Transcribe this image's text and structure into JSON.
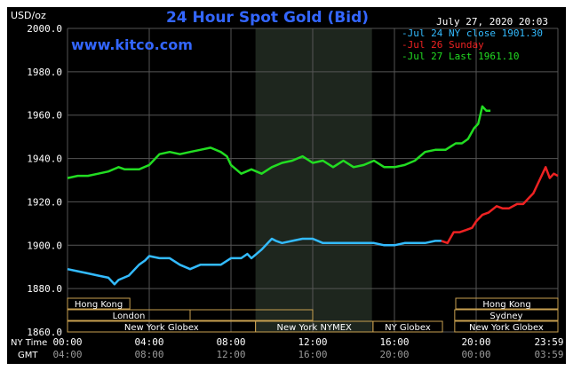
{
  "chart_data": {
    "type": "line",
    "title": "24 Hour Spot Gold (Bid)",
    "date_text": "July 27, 2020 20:03",
    "site": "www.kitco.com",
    "y_unit": "USD/oz",
    "ylim": [
      1860,
      2000
    ],
    "y_ticks": [
      "2000.0",
      "1980.0",
      "1960.0",
      "1940.0",
      "1920.0",
      "1900.0",
      "1880.0",
      "1860.0"
    ],
    "x_ticks_ny": [
      "00:00",
      "04:00",
      "08:00",
      "12:00",
      "16:00",
      "20:00",
      "23:59"
    ],
    "x_ticks_gmt": [
      "04:00",
      "08:00",
      "12:00",
      "16:00",
      "20:00",
      "00:00",
      "03:59"
    ],
    "x_label_ny": "NY Time",
    "x_label_gmt": "GMT",
    "shaded_region": [
      9.2,
      14.9
    ],
    "legend": [
      {
        "text": "Jul 24 NY close 1901.30",
        "color": "#33bbff"
      },
      {
        "text": "Jul 26 Sunday",
        "color": "#ee2222"
      },
      {
        "text": "Jul 27 Last 1961.10",
        "color": "#22dd22"
      }
    ],
    "series": [
      {
        "name": "Jul 24 NY close 1901.30",
        "color": "#33bbff",
        "x": [
          0,
          0.5,
          1,
          1.5,
          2,
          2.3,
          2.5,
          3,
          3.5,
          3.8,
          4,
          4.5,
          5,
          5.5,
          6,
          6.5,
          7,
          7.5,
          8,
          8.5,
          8.8,
          9,
          9.5,
          10,
          10.2,
          10.5,
          11,
          11.5,
          12,
          12.5,
          13,
          13.5,
          14,
          14.5,
          15,
          15.5,
          16,
          16.5,
          17,
          17.5,
          18,
          18.3
        ],
        "values": [
          1889,
          1888,
          1887,
          1886,
          1885,
          1882,
          1884,
          1886,
          1891,
          1893,
          1895,
          1894,
          1894,
          1891,
          1889,
          1891,
          1891,
          1891,
          1894,
          1894,
          1896,
          1894,
          1898,
          1903,
          1902,
          1901,
          1902,
          1903,
          1903,
          1901,
          1901,
          1901,
          1901,
          1901,
          1901,
          1900,
          1900,
          1901,
          1901,
          1901,
          1902,
          1902
        ]
      },
      {
        "name": "Jul 26 Sunday",
        "color": "#ee2222",
        "x": [
          18.3,
          18.6,
          18.9,
          19.2,
          19.5,
          19.8,
          20,
          20.3,
          20.6,
          21,
          21.3,
          21.6,
          22,
          22.3,
          22.6,
          22.8,
          23,
          23.2,
          23.4,
          23.6,
          23.8,
          24
        ],
        "values": [
          1902,
          1901,
          1906,
          1906,
          1907,
          1908,
          1911,
          1914,
          1915,
          1918,
          1917,
          1917,
          1919,
          1919,
          1922,
          1924,
          1928,
          1932,
          1936,
          1931,
          1933,
          1932
        ]
      },
      {
        "name": "Jul 27 Last 1961.10",
        "color": "#22dd22",
        "x": [
          0,
          0.5,
          1,
          1.5,
          2,
          2.5,
          2.8,
          3,
          3.5,
          4,
          4.5,
          5,
          5.5,
          6,
          6.5,
          7,
          7.5,
          7.8,
          8,
          8.5,
          9,
          9.5,
          10,
          10.5,
          11,
          11.5,
          12,
          12.5,
          13,
          13.5,
          14,
          14.5,
          15,
          15.5,
          16,
          16.5,
          17,
          17.5,
          18,
          18.5,
          19,
          19.3,
          19.6,
          19.9,
          20.1,
          20.3,
          20.5,
          20.7
        ],
        "values": [
          1931,
          1932,
          1932,
          1933,
          1934,
          1936,
          1935,
          1935,
          1935,
          1937,
          1942,
          1943,
          1942,
          1943,
          1944,
          1945,
          1943,
          1941,
          1937,
          1933,
          1935,
          1933,
          1936,
          1938,
          1939,
          1941,
          1938,
          1939,
          1936,
          1939,
          1936,
          1937,
          1939,
          1936,
          1936,
          1937,
          1939,
          1943,
          1944,
          1944,
          1947,
          1947,
          1949,
          1954,
          1956,
          1964,
          1962,
          1962
        ]
      }
    ],
    "sessions": [
      {
        "label": "Hong Kong",
        "start": 0,
        "end": 3.05,
        "row": 0
      },
      {
        "label": "London",
        "start": 0,
        "end": 6.0,
        "row": 1
      },
      {
        "label": "",
        "start": 6.0,
        "end": 12.0,
        "row": 1
      },
      {
        "label": "New York Globex",
        "start": 0,
        "end": 9.2,
        "row": 2
      },
      {
        "label": "New York NYMEX",
        "start": 9.2,
        "end": 14.95,
        "row": 2
      },
      {
        "label": "NY Globex",
        "start": 14.95,
        "end": 18.35,
        "row": 2
      },
      {
        "label": "Hong Kong",
        "start": 19.0,
        "end": 24.0,
        "row": 0
      },
      {
        "label": "Sydney",
        "start": 18.95,
        "end": 24.0,
        "row": 1
      },
      {
        "label": "New York Globex",
        "start": 18.95,
        "end": 24.0,
        "row": 2
      }
    ]
  }
}
